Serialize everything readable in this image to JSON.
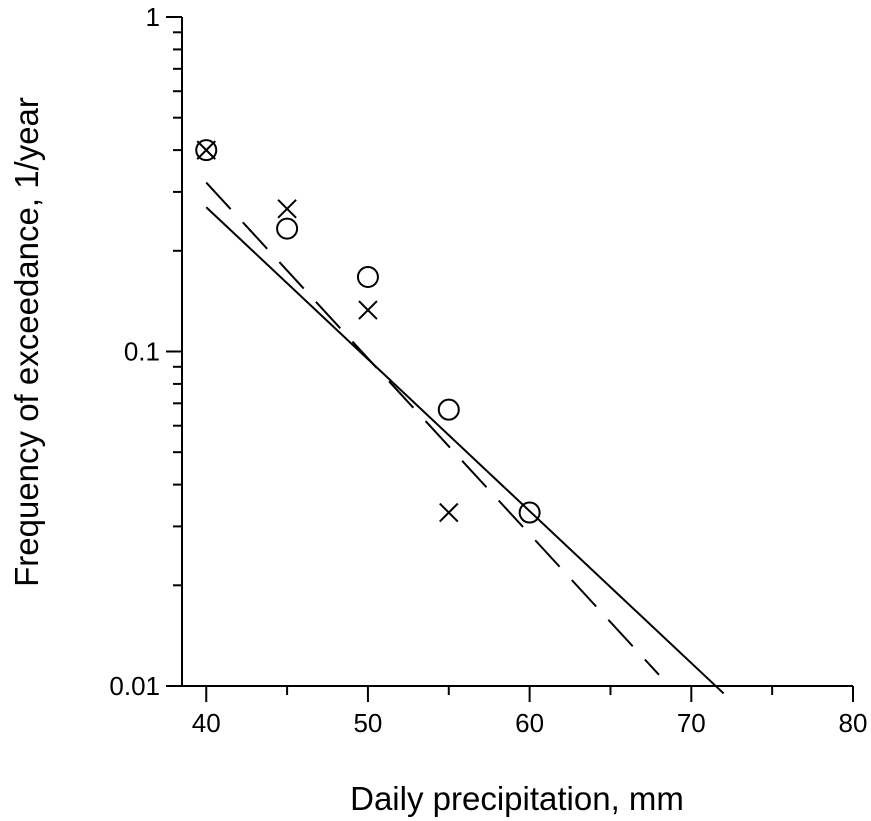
{
  "chart_data": {
    "type": "scatter",
    "title": "",
    "xlabel": "Daily precipitation, mm",
    "ylabel": "Frequency of exceedance, 1/year",
    "xlim": [
      38.5,
      80
    ],
    "ylim": [
      0.01,
      1
    ],
    "y_scale": "log",
    "x_ticks": [
      40,
      50,
      60,
      70,
      80
    ],
    "x_tick_labels": [
      "40",
      "50",
      "60",
      "70",
      "80"
    ],
    "y_ticks": [
      0.01,
      0.1,
      1
    ],
    "y_tick_labels": [
      "0.01",
      "0.1",
      "1"
    ],
    "grid": false,
    "legend": "none",
    "series": [
      {
        "marker": "circle",
        "style": "markers",
        "color": "#000000",
        "points": [
          {
            "x": 40,
            "y": 0.4
          },
          {
            "x": 45,
            "y": 0.233
          },
          {
            "x": 50,
            "y": 0.167
          },
          {
            "x": 55,
            "y": 0.067
          },
          {
            "x": 60,
            "y": 0.033
          }
        ]
      },
      {
        "marker": "cross",
        "style": "markers",
        "color": "#000000",
        "points": [
          {
            "x": 40,
            "y": 0.4
          },
          {
            "x": 45,
            "y": 0.267
          },
          {
            "x": 50,
            "y": 0.133
          },
          {
            "x": 55,
            "y": 0.033
          }
        ]
      },
      {
        "style": "solid-line",
        "color": "#000000",
        "points": [
          {
            "x": 40,
            "y": 0.27
          },
          {
            "x": 72,
            "y": 0.0095
          }
        ]
      },
      {
        "style": "dashed-line",
        "color": "#000000",
        "points": [
          {
            "x": 40,
            "y": 0.32
          },
          {
            "x": 68,
            "y": 0.0108
          }
        ]
      }
    ]
  }
}
